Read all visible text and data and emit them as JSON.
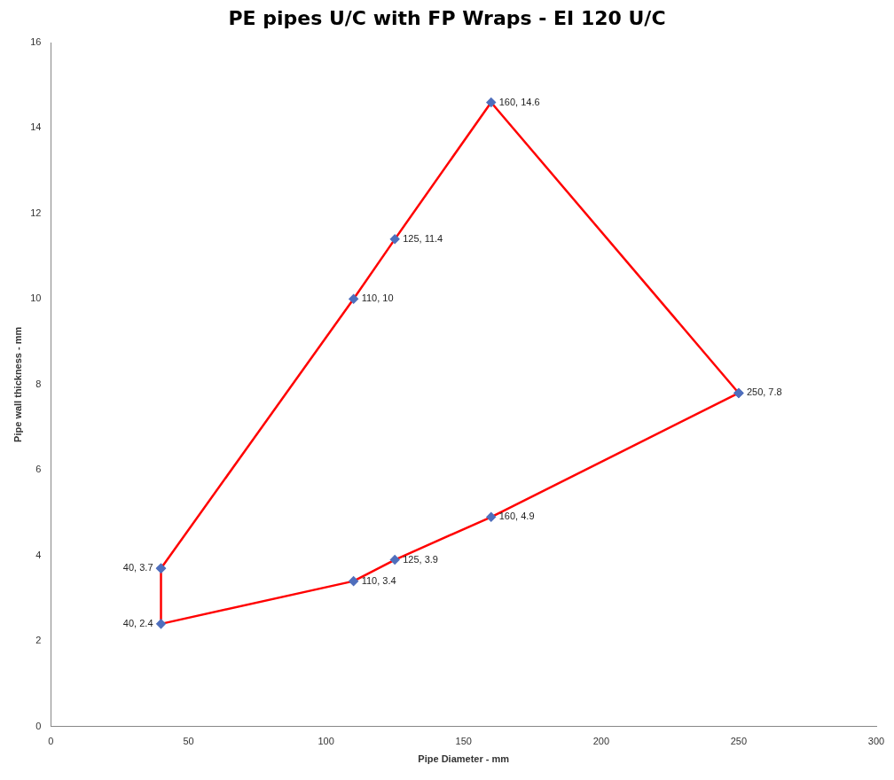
{
  "chart_data": {
    "type": "line",
    "title": "PE pipes U/C with FP Wraps - EI 120 U/C",
    "xlabel": "Pipe Diameter - mm",
    "ylabel": "Pipe wall thickness - mm",
    "series": [
      {
        "color": "#ff0000",
        "colors": [
          "#4f6fbd",
          "#4f6fbd",
          "#4f6fbd",
          "#4f6fbd",
          "#4f6fbd"
        ],
        "x": [
          40,
          110,
          125,
          160,
          250
        ],
        "values": [
          3.7,
          10,
          11.4,
          14.6,
          7.8
        ],
        "value_labels": [
          "40, 3.7",
          "110, 10",
          "125, 11.4",
          "160, 14.6",
          "250, 7.8"
        ]
      },
      {
        "color": "#ff0000",
        "colors": [
          "#4f6fbd",
          "#4f6fbd",
          "#4f6fbd",
          "#4f6fbd",
          "#4f6fbd",
          "#4f6fbd"
        ],
        "x": [
          40,
          40,
          110,
          125,
          160,
          250
        ],
        "values": [
          3.7,
          2.4,
          3.4,
          3.9,
          4.9,
          7.8
        ],
        "value_labels": [
          null,
          "40, 2.4",
          "110, 3.4",
          "125, 3.9",
          "160, 4.9",
          null
        ]
      }
    ],
    "xlim": [
      0,
      300
    ],
    "xticks": [
      0,
      50,
      100,
      150,
      200,
      250,
      300
    ],
    "ylim": [
      0,
      16
    ],
    "yticks": [
      0,
      2,
      4,
      6,
      8,
      10,
      12,
      14,
      16
    ],
    "grid": false,
    "legend": false,
    "marker": "diamond",
    "line_style": "solid"
  }
}
